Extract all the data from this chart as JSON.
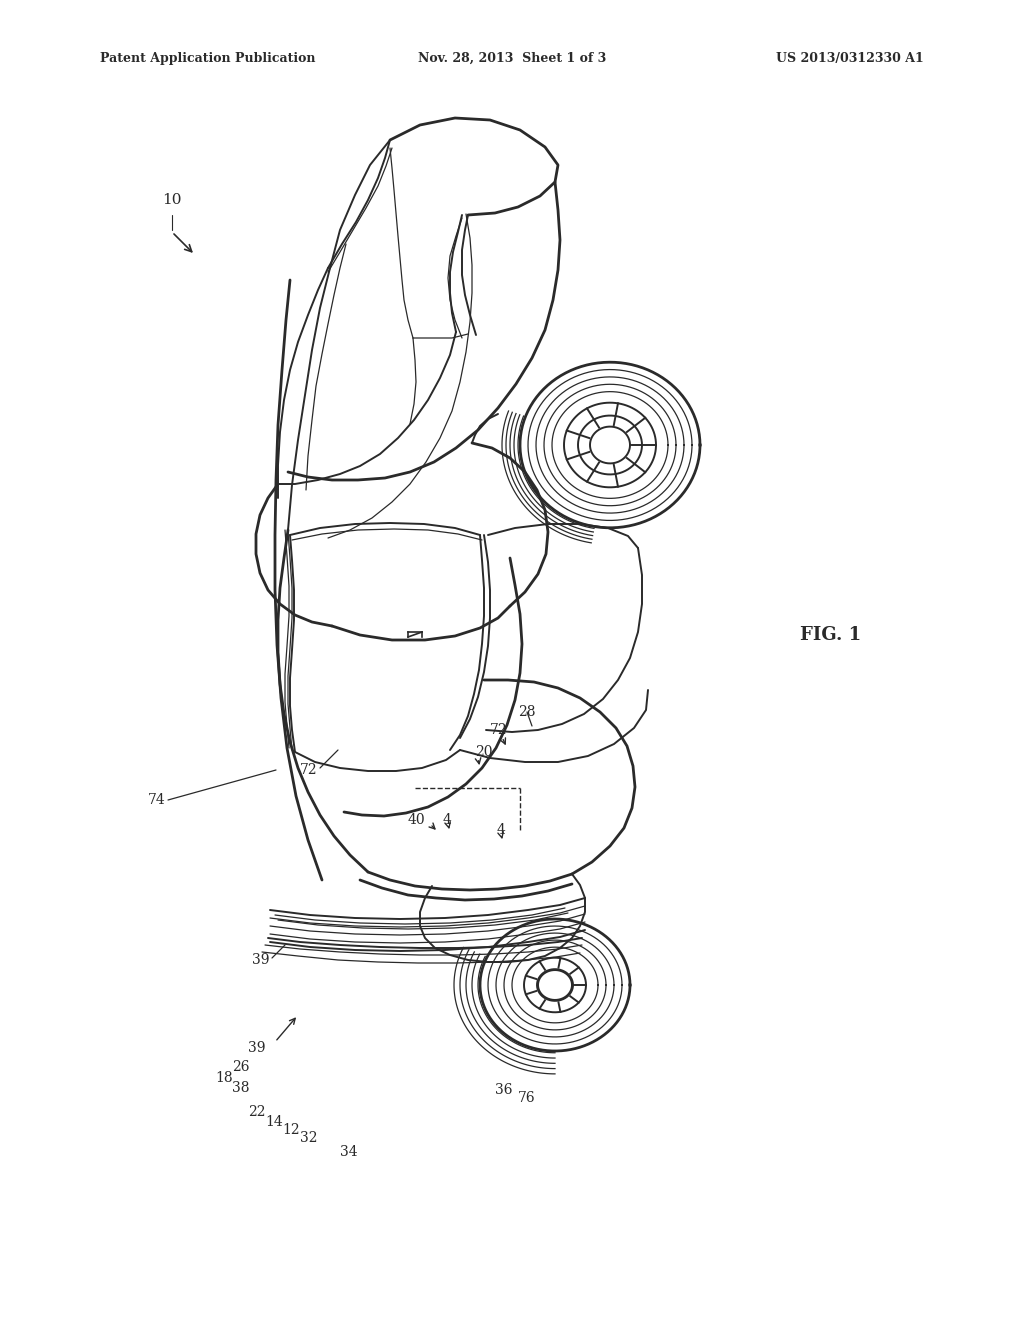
{
  "background_color": "#ffffff",
  "line_color": "#2a2a2a",
  "header_left": "Patent Application Publication",
  "header_center": "Nov. 28, 2013  Sheet 1 of 3",
  "header_right": "US 2013/0312330 A1",
  "fig_label": "FIG. 1",
  "lw_thick": 2.0,
  "lw_main": 1.4,
  "lw_thin": 0.9,
  "lw_double": 1.2
}
